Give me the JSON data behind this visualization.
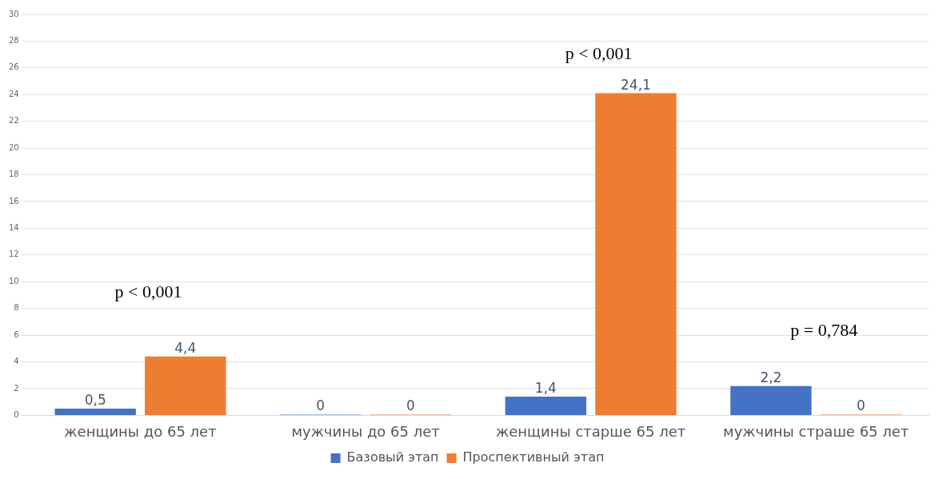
{
  "chart_data": {
    "type": "bar",
    "categories": [
      "женщины до 65 лет",
      "мужчины до 65 лет",
      "женщины старше 65 лет",
      "мужчины страше 65 лет"
    ],
    "series": [
      {
        "name": "Базовый этап",
        "color": "#4472c4",
        "values": [
          0.5,
          0,
          1.4,
          2.2
        ],
        "value_labels": [
          "0,5",
          "0",
          "1,4",
          "2,2"
        ]
      },
      {
        "name": "Проспективный этап",
        "color": "#ed7d31",
        "values": [
          4.4,
          0,
          24.1,
          0
        ],
        "value_labels": [
          "4,4",
          "0",
          "24,1",
          "0"
        ]
      }
    ],
    "ylim": [
      0,
      30
    ],
    "yticks": [
      0,
      2,
      4,
      6,
      8,
      10,
      12,
      14,
      16,
      18,
      20,
      22,
      24,
      26,
      28,
      30
    ],
    "grid": "y",
    "legend": "bottom",
    "annotations": [
      "p < 0,001",
      "p < 0,001",
      "p = 0,784"
    ]
  }
}
